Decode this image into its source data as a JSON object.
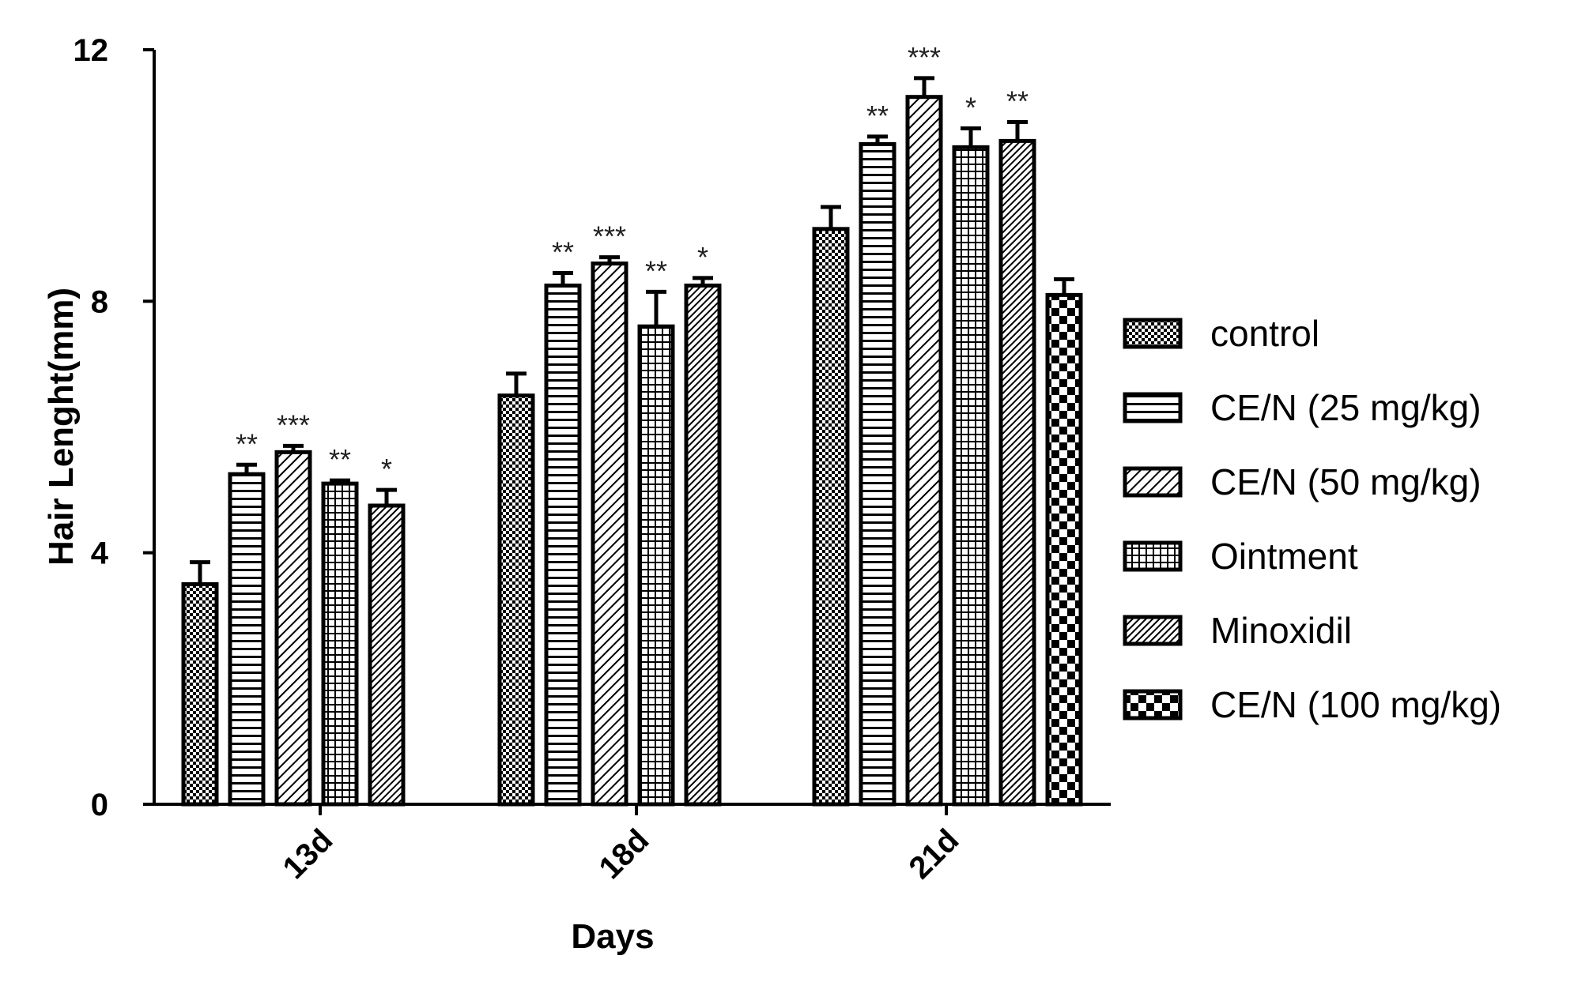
{
  "chart_data": {
    "type": "bar",
    "title": "",
    "xlabel": "Days",
    "ylabel": "Hair Lenght(mm)",
    "ylim": [
      0,
      12
    ],
    "yticks": [
      0,
      4,
      8,
      12
    ],
    "categories": [
      "13d",
      "18d",
      "21d"
    ],
    "series": [
      {
        "name": "control",
        "pattern": "checker-fine",
        "values": [
          3.5,
          6.5,
          9.15
        ],
        "errors": [
          0.35,
          0.35,
          0.35
        ],
        "significance": [
          "",
          "",
          ""
        ]
      },
      {
        "name": "CE/N (25 mg/kg)",
        "pattern": "horizontal",
        "values": [
          5.25,
          8.25,
          10.5
        ],
        "errors": [
          0.15,
          0.2,
          0.12
        ],
        "significance": [
          "**",
          "**",
          "**"
        ]
      },
      {
        "name": "CE/N (50 mg/kg)",
        "pattern": "diagonal",
        "values": [
          5.6,
          8.6,
          11.25
        ],
        "errors": [
          0.1,
          0.1,
          0.3
        ],
        "significance": [
          "***",
          "***",
          "***"
        ]
      },
      {
        "name": "Ointment",
        "pattern": "grid",
        "values": [
          5.1,
          7.6,
          10.45
        ],
        "errors": [
          0.05,
          0.55,
          0.3
        ],
        "significance": [
          "**",
          "**",
          "*"
        ]
      },
      {
        "name": "Minoxidil",
        "pattern": "diagonal-dense",
        "values": [
          4.75,
          8.25,
          10.55
        ],
        "errors": [
          0.25,
          0.12,
          0.3
        ],
        "significance": [
          "*",
          "*",
          "**"
        ]
      },
      {
        "name": "CE/N (100 mg/kg)",
        "pattern": "checker-coarse",
        "values": [
          null,
          null,
          8.1
        ],
        "errors": [
          null,
          null,
          0.25
        ],
        "significance": [
          "",
          "",
          ""
        ]
      }
    ],
    "legend": "right",
    "grid": false
  }
}
